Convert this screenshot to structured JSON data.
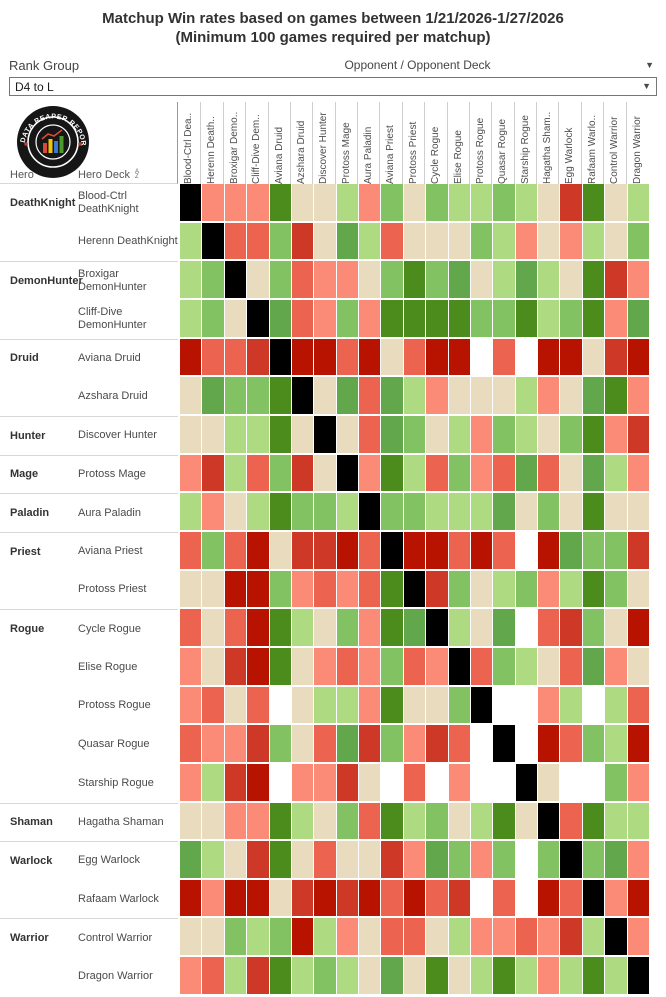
{
  "title": {
    "line1": "Matchup Win rates based on games between 1/21/2026-1/27/2026",
    "line2": "(Minimum 100 games required per matchup)"
  },
  "controls": {
    "rank_group_label": "Rank Group",
    "opponent_header": "Opponent / Opponent Deck",
    "rank_select_value": "D4 to L",
    "dropdown_icon": "▼"
  },
  "corner": {
    "hero_label": "Hero",
    "deck_label": "Hero Deck",
    "sort_icon_top": "A",
    "sort_icon_bottom": "Z"
  },
  "logo": {
    "text": "DATA REAPER REPORT"
  },
  "chart_data": {
    "type": "heatmap",
    "title": "Matchup Win rates based on games between 1/21/2026-1/27/2026 (Minimum 100 games required per matchup)",
    "x_axis_label": "Opponent / Opponent Deck",
    "y_axis_labels": [
      "Hero",
      "Hero Deck"
    ],
    "legend_position": "none",
    "grid": "white gaps between cells",
    "palette": {
      "K": "#000000",
      "W": "#ffffff",
      "R1": "#b71300",
      "R2": "#cd3926",
      "R3": "#ec6450",
      "R4": "#fb8b76",
      "B": "#e9dcbe",
      "G4": "#aedb82",
      "G3": "#82c262",
      "G2": "#62a74b",
      "G1": "#4c8c1d"
    },
    "columns": [
      "Blood-Ctrl Dea..",
      "Herenn Death..",
      "Broxigar Demo..",
      "Cliff-Dive Dem..",
      "Aviana Druid",
      "Azshara Druid",
      "Discover Hunter",
      "Protoss Mage",
      "Aura Paladin",
      "Aviana Priest",
      "Protoss Priest",
      "Cycle Rogue",
      "Elise Rogue",
      "Protoss Rogue",
      "Quasar Rogue",
      "Starship Rogue",
      "Hagatha Sham..",
      "Egg Warlock",
      "Rafaam Warlo..",
      "Control Warrior",
      "Dragon Warrior"
    ],
    "rows": [
      {
        "hero": "DeathKnight",
        "deck": "Blood-Ctrl DeathKnight",
        "cells": [
          "K",
          "R4",
          "R4",
          "R4",
          "G1",
          "B",
          "B",
          "G4",
          "R4",
          "G3",
          "B",
          "G3",
          "G4",
          "G4",
          "G3",
          "G4",
          "B",
          "R2",
          "G1",
          "B",
          "G4"
        ]
      },
      {
        "hero": "",
        "deck": "Herenn DeathKnight",
        "cells": [
          "G4",
          "K",
          "R3",
          "R3",
          "G3",
          "R2",
          "B",
          "G2",
          "G4",
          "R3",
          "B",
          "B",
          "B",
          "G3",
          "G4",
          "R4",
          "B",
          "R4",
          "G4",
          "B",
          "G3"
        ]
      },
      {
        "hero": "DemonHunter",
        "deck": "Broxigar DemonHunter",
        "cells": [
          "G4",
          "G3",
          "K",
          "B",
          "G3",
          "R3",
          "R4",
          "R4",
          "B",
          "G3",
          "G1",
          "G3",
          "G2",
          "B",
          "G4",
          "G2",
          "G4",
          "B",
          "G1",
          "R2",
          "R4"
        ]
      },
      {
        "hero": "",
        "deck": "Cliff-Dive DemonHunter",
        "cells": [
          "G4",
          "G3",
          "B",
          "K",
          "G2",
          "R3",
          "R4",
          "G3",
          "R4",
          "G1",
          "G1",
          "G1",
          "G1",
          "G3",
          "G3",
          "G1",
          "G4",
          "G3",
          "G1",
          "R4",
          "G2"
        ]
      },
      {
        "hero": "Druid",
        "deck": "Aviana Druid",
        "cells": [
          "R1",
          "R3",
          "R3",
          "R2",
          "K",
          "R1",
          "R1",
          "R3",
          "R1",
          "B",
          "R3",
          "R1",
          "R1",
          "W",
          "R3",
          "W",
          "R1",
          "R1",
          "B",
          "R2",
          "R1"
        ]
      },
      {
        "hero": "",
        "deck": "Azshara Druid",
        "cells": [
          "B",
          "G2",
          "G3",
          "G3",
          "G1",
          "K",
          "B",
          "G2",
          "R3",
          "G2",
          "G4",
          "R4",
          "B",
          "B",
          "B",
          "G4",
          "R4",
          "B",
          "G2",
          "G1",
          "R4"
        ]
      },
      {
        "hero": "Hunter",
        "deck": "Discover Hunter",
        "cells": [
          "B",
          "B",
          "G4",
          "G4",
          "G1",
          "B",
          "K",
          "B",
          "R3",
          "G2",
          "G3",
          "B",
          "G4",
          "R4",
          "G3",
          "G4",
          "B",
          "G3",
          "G1",
          "R4",
          "R2"
        ]
      },
      {
        "hero": "Mage",
        "deck": "Protoss Mage",
        "cells": [
          "R4",
          "R2",
          "G4",
          "R3",
          "G3",
          "R2",
          "B",
          "K",
          "R4",
          "G1",
          "G4",
          "R3",
          "G3",
          "R4",
          "R3",
          "G2",
          "R3",
          "B",
          "G2",
          "G4",
          "R4"
        ]
      },
      {
        "hero": "Paladin",
        "deck": "Aura Paladin",
        "cells": [
          "G4",
          "R4",
          "B",
          "G4",
          "G1",
          "G3",
          "G3",
          "G4",
          "K",
          "G3",
          "G3",
          "G4",
          "G4",
          "G4",
          "G2",
          "B",
          "G3",
          "B",
          "G1",
          "B",
          "B"
        ]
      },
      {
        "hero": "Priest",
        "deck": "Aviana Priest",
        "cells": [
          "R3",
          "G3",
          "R3",
          "R1",
          "B",
          "R2",
          "R2",
          "R1",
          "R3",
          "K",
          "R1",
          "R1",
          "R3",
          "R1",
          "R3",
          "W",
          "R1",
          "G2",
          "G3",
          "G3",
          "R2"
        ]
      },
      {
        "hero": "",
        "deck": "Protoss Priest",
        "cells": [
          "B",
          "B",
          "R1",
          "R1",
          "G3",
          "R4",
          "R3",
          "R4",
          "R3",
          "G1",
          "K",
          "R2",
          "G3",
          "B",
          "G4",
          "G3",
          "R4",
          "G4",
          "G1",
          "G3",
          "B"
        ]
      },
      {
        "hero": "Rogue",
        "deck": "Cycle Rogue",
        "cells": [
          "R3",
          "B",
          "R3",
          "R1",
          "G1",
          "G4",
          "B",
          "G3",
          "R4",
          "G1",
          "G2",
          "K",
          "G4",
          "B",
          "G2",
          "W",
          "R3",
          "R2",
          "G3",
          "B",
          "R1"
        ]
      },
      {
        "hero": "",
        "deck": "Elise Rogue",
        "cells": [
          "R4",
          "B",
          "R2",
          "R1",
          "G1",
          "B",
          "R4",
          "R3",
          "R4",
          "G3",
          "R3",
          "R4",
          "K",
          "R3",
          "G3",
          "G4",
          "B",
          "R3",
          "G2",
          "R4",
          "B"
        ]
      },
      {
        "hero": "",
        "deck": "Protoss Rogue",
        "cells": [
          "R4",
          "R3",
          "B",
          "R3",
          "W",
          "B",
          "G4",
          "G4",
          "R4",
          "G1",
          "B",
          "B",
          "G3",
          "K",
          "W",
          "W",
          "R4",
          "G4",
          "W",
          "G4",
          "R3"
        ]
      },
      {
        "hero": "",
        "deck": "Quasar Rogue",
        "cells": [
          "R3",
          "R4",
          "R4",
          "R2",
          "G3",
          "B",
          "R3",
          "G2",
          "R2",
          "G3",
          "R4",
          "R2",
          "R3",
          "W",
          "K",
          "W",
          "R1",
          "R3",
          "G3",
          "G4",
          "R1"
        ]
      },
      {
        "hero": "",
        "deck": "Starship Rogue",
        "cells": [
          "R4",
          "G4",
          "R2",
          "R1",
          "W",
          "R4",
          "R4",
          "R2",
          "B",
          "W",
          "R3",
          "W",
          "R4",
          "W",
          "W",
          "K",
          "B",
          "W",
          "W",
          "G3",
          "R4"
        ]
      },
      {
        "hero": "Shaman",
        "deck": "Hagatha Shaman",
        "cells": [
          "B",
          "B",
          "R4",
          "R4",
          "G1",
          "G4",
          "B",
          "G3",
          "R3",
          "G1",
          "G4",
          "G3",
          "B",
          "G4",
          "G1",
          "B",
          "K",
          "R3",
          "G1",
          "G4",
          "G4"
        ]
      },
      {
        "hero": "Warlock",
        "deck": "Egg Warlock",
        "cells": [
          "G2",
          "G4",
          "B",
          "R2",
          "G1",
          "B",
          "R3",
          "B",
          "B",
          "R2",
          "R4",
          "G2",
          "G3",
          "R4",
          "G3",
          "W",
          "G3",
          "K",
          "G3",
          "G2",
          "R4"
        ]
      },
      {
        "hero": "",
        "deck": "Rafaam Warlock",
        "cells": [
          "R1",
          "R4",
          "R1",
          "R1",
          "B",
          "R2",
          "R1",
          "R2",
          "R1",
          "R3",
          "R1",
          "R3",
          "R2",
          "W",
          "R3",
          "W",
          "R1",
          "R3",
          "K",
          "R4",
          "R1"
        ]
      },
      {
        "hero": "Warrior",
        "deck": "Control Warrior",
        "cells": [
          "B",
          "B",
          "G3",
          "G4",
          "G3",
          "R1",
          "G4",
          "R4",
          "B",
          "R3",
          "R3",
          "B",
          "G4",
          "R4",
          "R4",
          "R3",
          "R4",
          "R2",
          "G4",
          "K",
          "R4"
        ]
      },
      {
        "hero": "",
        "deck": "Dragon Warrior",
        "cells": [
          "R4",
          "R3",
          "G4",
          "R2",
          "G1",
          "G4",
          "G3",
          "G4",
          "B",
          "G2",
          "B",
          "G1",
          "B",
          "G4",
          "G1",
          "G4",
          "R4",
          "G4",
          "G1",
          "G4",
          "K"
        ]
      }
    ]
  }
}
